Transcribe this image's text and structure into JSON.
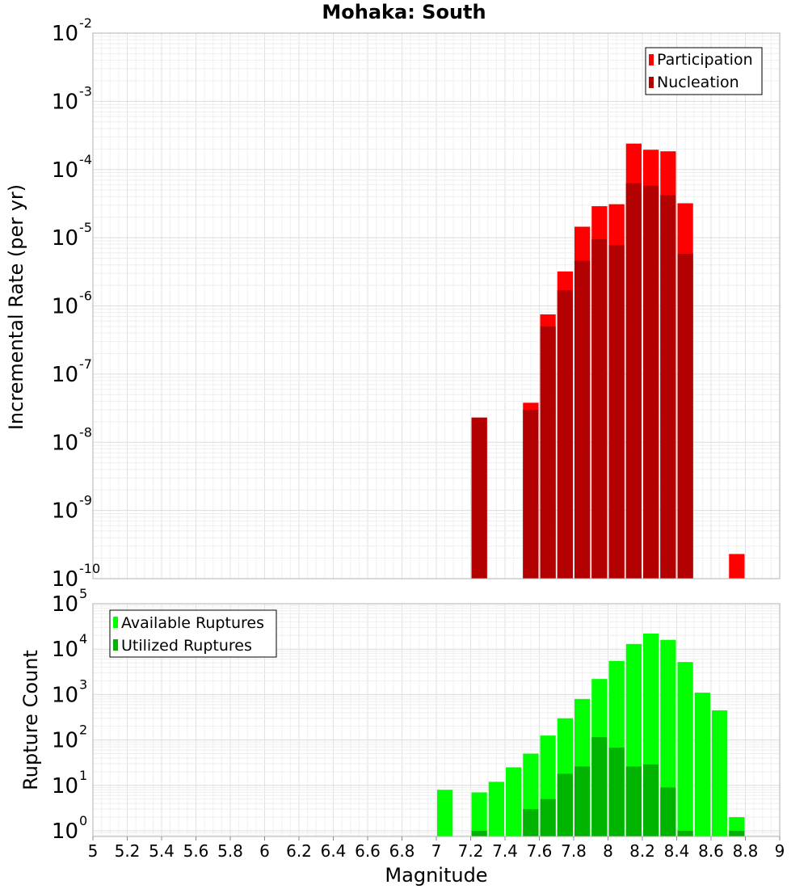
{
  "chart_data": [
    {
      "type": "bar",
      "title": "Mohaka: South",
      "xlabel": "",
      "ylabel": "Incremental Rate (per yr)",
      "yscale": "log",
      "xlim": [
        5,
        9
      ],
      "ylim": [
        1e-10,
        0.01
      ],
      "y_ticks": [
        {
          "base": "10",
          "exp": "-10",
          "value": 1e-10
        },
        {
          "base": "10",
          "exp": "-9",
          "value": 1e-09
        },
        {
          "base": "10",
          "exp": "-8",
          "value": 1e-08
        },
        {
          "base": "10",
          "exp": "-7",
          "value": 1e-07
        },
        {
          "base": "10",
          "exp": "-6",
          "value": 1e-06
        },
        {
          "base": "10",
          "exp": "-5",
          "value": 1e-05
        },
        {
          "base": "10",
          "exp": "-4",
          "value": 0.0001
        },
        {
          "base": "10",
          "exp": "-3",
          "value": 0.001
        },
        {
          "base": "10",
          "exp": "-2",
          "value": 0.01
        }
      ],
      "bin_width": 0.1,
      "legend_position": "top-right",
      "series": [
        {
          "name": "Participation",
          "color": "#ff0000",
          "x": [
            7.25,
            7.55,
            7.65,
            7.75,
            7.85,
            7.95,
            8.05,
            8.15,
            8.25,
            8.35,
            8.45,
            8.75
          ],
          "values": [
            2.3e-08,
            3.8e-08,
            7.5e-07,
            3.2e-06,
            1.45e-05,
            2.9e-05,
            3.1e-05,
            0.00024,
            0.000195,
            0.000185,
            3.2e-05,
            2.3e-10
          ]
        },
        {
          "name": "Nucleation",
          "color": "#b30000",
          "x": [
            7.25,
            7.55,
            7.65,
            7.75,
            7.85,
            7.95,
            8.05,
            8.15,
            8.25,
            8.35,
            8.45
          ],
          "values": [
            2.3e-08,
            3e-08,
            5e-07,
            1.7e-06,
            4.6e-06,
            9.5e-06,
            7.8e-06,
            6.3e-05,
            5.8e-05,
            4.2e-05,
            5.8e-06
          ]
        }
      ]
    },
    {
      "type": "bar",
      "title": "",
      "xlabel": "Magnitude",
      "ylabel": "Rupture Count",
      "yscale": "log",
      "xlim": [
        5,
        9
      ],
      "ylim": [
        0.75,
        100000
      ],
      "x_ticks": [
        "5",
        "5.2",
        "5.4",
        "5.6",
        "5.8",
        "6",
        "6.2",
        "6.4",
        "6.6",
        "6.8",
        "7",
        "7.2",
        "7.4",
        "7.6",
        "7.8",
        "8",
        "8.2",
        "8.4",
        "8.6",
        "8.8",
        "9"
      ],
      "y_ticks": [
        {
          "base": "10",
          "exp": "0",
          "value": 1
        },
        {
          "base": "10",
          "exp": "1",
          "value": 10
        },
        {
          "base": "10",
          "exp": "2",
          "value": 100
        },
        {
          "base": "10",
          "exp": "3",
          "value": 1000
        },
        {
          "base": "10",
          "exp": "4",
          "value": 10000
        },
        {
          "base": "10",
          "exp": "5",
          "value": 100000
        }
      ],
      "bin_width": 0.1,
      "legend_position": "top-left",
      "series": [
        {
          "name": "Available Ruptures",
          "color": "#00ff00",
          "x": [
            7.05,
            7.25,
            7.35,
            7.45,
            7.55,
            7.65,
            7.75,
            7.85,
            7.95,
            8.05,
            8.15,
            8.25,
            8.35,
            8.45,
            8.55,
            8.65,
            8.75
          ],
          "values": [
            8,
            7,
            12,
            25,
            50,
            125,
            300,
            800,
            2200,
            5500,
            13000,
            22000,
            16000,
            5200,
            1100,
            450,
            2
          ]
        },
        {
          "name": "Utilized Ruptures",
          "color": "#00b300",
          "x": [
            7.25,
            7.55,
            7.65,
            7.75,
            7.85,
            7.95,
            8.05,
            8.15,
            8.25,
            8.35,
            8.45,
            8.75
          ],
          "values": [
            1,
            3,
            5,
            18,
            26,
            115,
            68,
            26,
            29,
            9,
            1,
            1
          ]
        }
      ]
    }
  ]
}
